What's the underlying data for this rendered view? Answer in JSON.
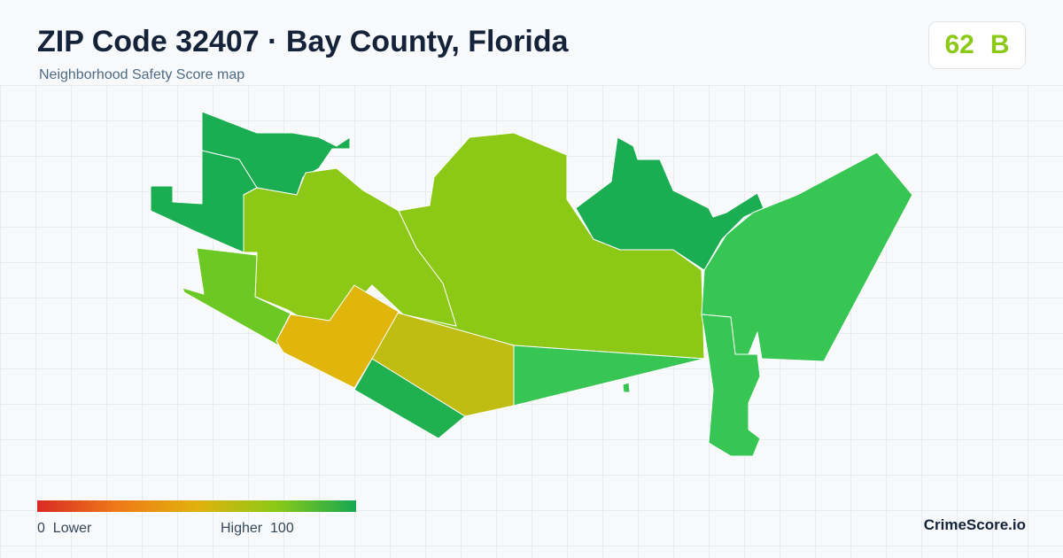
{
  "header": {
    "title": "ZIP Code 32407 · Bay County, Florida",
    "subtitle": "Neighborhood Safety Score map",
    "score": 62,
    "grade": "B"
  },
  "legend": {
    "min": 0,
    "low": "Lower",
    "high": "Higher",
    "max": 100
  },
  "brand": "CrimeScore.io"
}
